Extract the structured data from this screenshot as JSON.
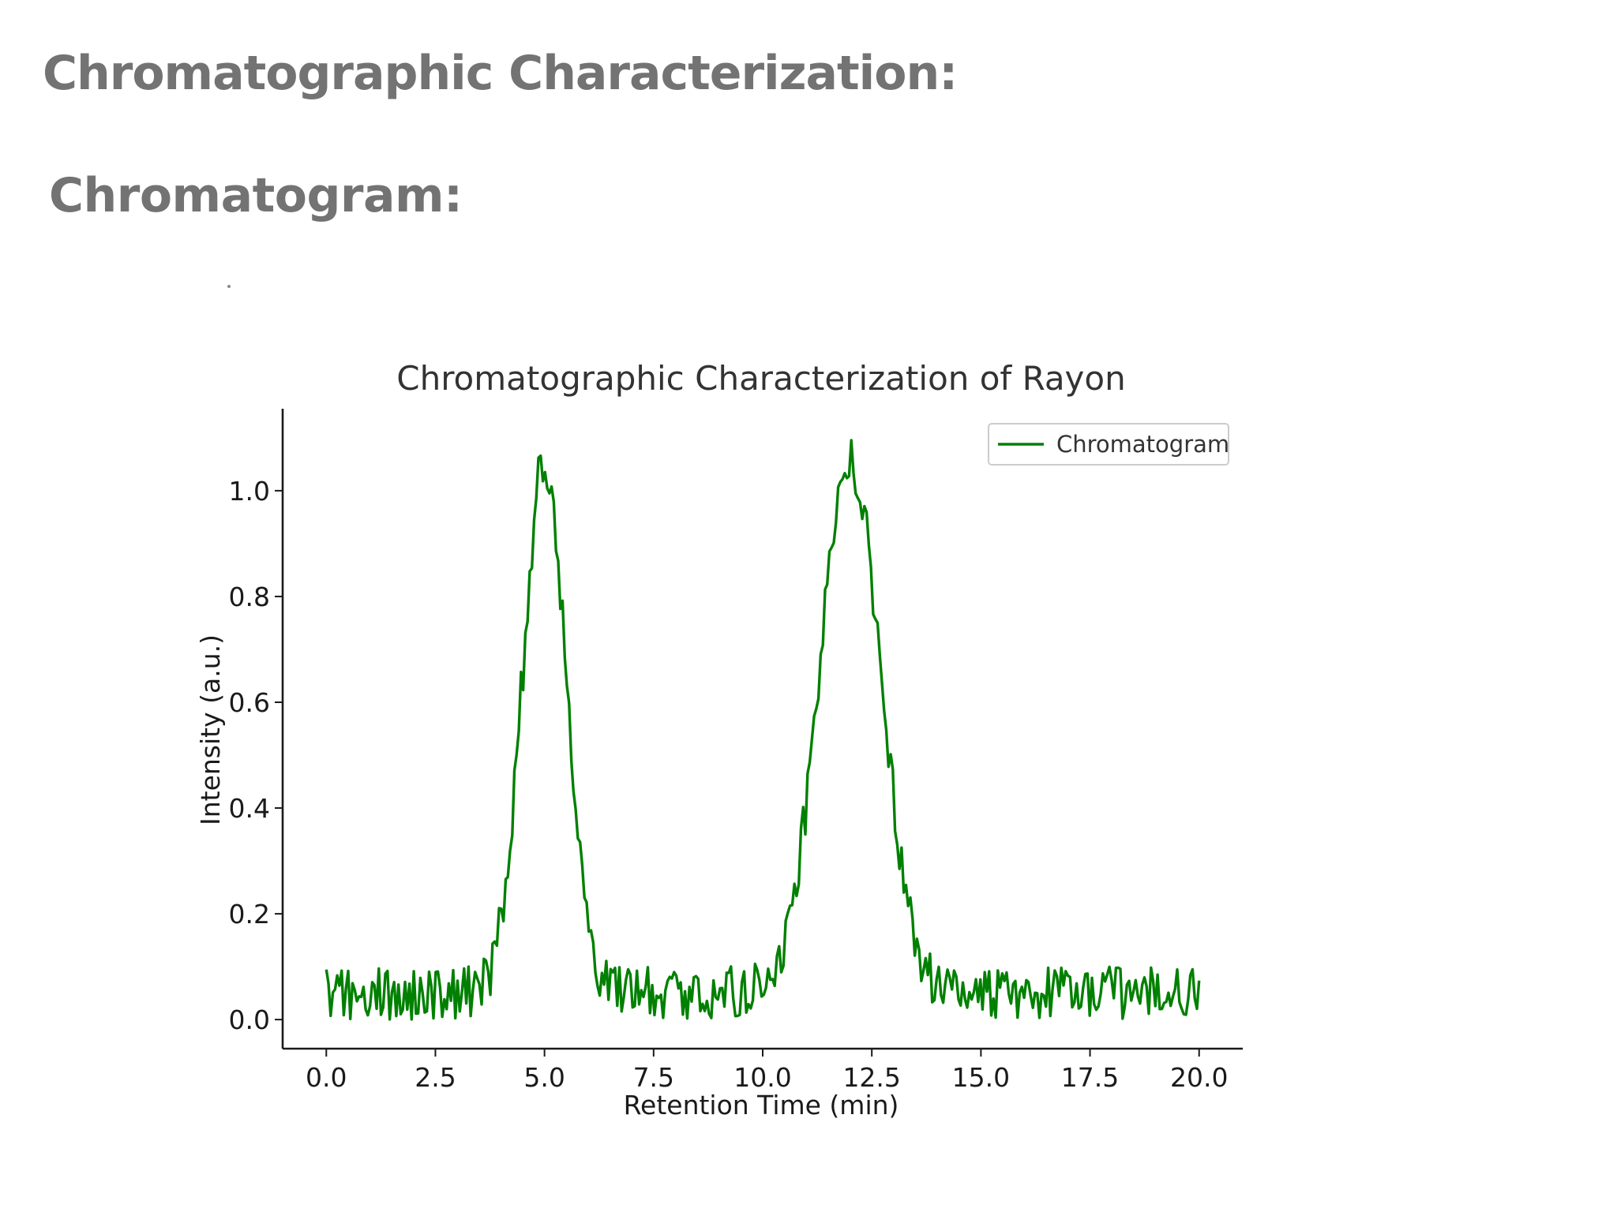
{
  "slide": {
    "heading": "Chromatographic Characterization:",
    "subheading": "Chromatogram:"
  },
  "chart_data": {
    "type": "line",
    "title": "Chromatographic Characterization of Rayon",
    "xlabel": "Retention Time (min)",
    "ylabel": "Intensity (a.u.)",
    "xlim": [
      -1.0,
      21.0
    ],
    "ylim": [
      -0.055,
      1.155
    ],
    "xticks": [
      0.0,
      2.5,
      5.0,
      7.5,
      10.0,
      12.5,
      15.0,
      17.5,
      20.0
    ],
    "xtick_labels": [
      "0.0",
      "2.5",
      "5.0",
      "7.5",
      "10.0",
      "12.5",
      "15.0",
      "17.5",
      "20.0"
    ],
    "yticks": [
      0.0,
      0.2,
      0.4,
      0.6,
      0.8,
      1.0
    ],
    "ytick_labels": [
      "0.0",
      "0.2",
      "0.4",
      "0.6",
      "0.8",
      "1.0"
    ],
    "grid": false,
    "legend": {
      "position": "top-right",
      "entries": [
        "Chromatogram"
      ]
    },
    "series": [
      {
        "name": "Chromatogram",
        "color": "#008000",
        "x_start": 0.0,
        "x_end": 20.0,
        "points": 400,
        "peaks": [
          {
            "center": 5.0,
            "height": 1.0,
            "width_sd": 0.5
          },
          {
            "center": 12.0,
            "height": 1.0,
            "width_sd": 0.7
          }
        ],
        "baseline": 0.05,
        "noise_amplitude": 0.05
      }
    ]
  }
}
